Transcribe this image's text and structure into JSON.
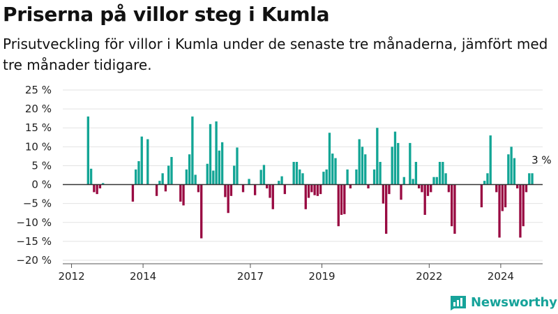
{
  "title": "Priserna på villor steg i Kumla",
  "subtitle": "Prisutveckling för villor i Kumla under de senaste tre månaderna, jämfört med tre månader tidigare.",
  "brand": "Newsworthy",
  "colors": {
    "positive": "#12a595",
    "negative": "#990a42",
    "grid": "#e2e2e2",
    "zero": "#333333",
    "brand": "#17a39a"
  },
  "chart_data": {
    "type": "bar",
    "ylim": [
      -20,
      25
    ],
    "yticks": [
      25,
      20,
      15,
      10,
      5,
      0,
      -5,
      -10,
      -15,
      -20
    ],
    "ytick_labels": [
      "25 %",
      "20 %",
      "15 %",
      "10 %",
      "5 %",
      "0 %",
      "−5 %",
      "−10 %",
      "−15 %",
      "−20 %"
    ],
    "xlim": [
      "2011-11",
      "2025-04"
    ],
    "xtick_labels": [
      "2012",
      "2014",
      "2017",
      "2019",
      "2022",
      "2024"
    ],
    "xtick_dates": [
      "2012-01",
      "2014-01",
      "2017-01",
      "2019-01",
      "2022-01",
      "2024-01"
    ],
    "annotation": {
      "text": "3 %",
      "date": "2024-10"
    },
    "series": [
      {
        "values": [
          [
            "2012-07",
            18
          ],
          [
            "2012-08",
            4.2
          ],
          [
            "2012-09",
            -2
          ],
          [
            "2012-10",
            -2.5
          ],
          [
            "2012-11",
            -1
          ],
          [
            "2012-12",
            0.4
          ],
          [
            "2013-10",
            -4.5
          ],
          [
            "2013-11",
            4
          ],
          [
            "2013-12",
            6.2
          ],
          [
            "2014-01",
            12.7
          ],
          [
            "2014-03",
            12
          ],
          [
            "2014-06",
            -3
          ],
          [
            "2014-07",
            1
          ],
          [
            "2014-08",
            3
          ],
          [
            "2014-09",
            -1.8
          ],
          [
            "2014-10",
            5
          ],
          [
            "2014-11",
            7.3
          ],
          [
            "2015-02",
            -4.5
          ],
          [
            "2015-03",
            -5.5
          ],
          [
            "2015-04",
            4
          ],
          [
            "2015-05",
            8
          ],
          [
            "2015-06",
            18
          ],
          [
            "2015-07",
            2.6
          ],
          [
            "2015-08",
            -2
          ],
          [
            "2015-09",
            -14.2
          ],
          [
            "2015-11",
            5.5
          ],
          [
            "2015-12",
            16
          ],
          [
            "2016-01",
            3.7
          ],
          [
            "2016-02",
            16.7
          ],
          [
            "2016-03",
            9
          ],
          [
            "2016-04",
            11.2
          ],
          [
            "2016-05",
            -3.3
          ],
          [
            "2016-06",
            -7.5
          ],
          [
            "2016-07",
            -3
          ],
          [
            "2016-08",
            5
          ],
          [
            "2016-09",
            9.8
          ],
          [
            "2016-11",
            -2
          ],
          [
            "2017-01",
            1.5
          ],
          [
            "2017-03",
            -2.8
          ],
          [
            "2017-05",
            3.9
          ],
          [
            "2017-06",
            5.2
          ],
          [
            "2017-07",
            -1
          ],
          [
            "2017-08",
            -3.5
          ],
          [
            "2017-09",
            -6.5
          ],
          [
            "2017-11",
            1
          ],
          [
            "2017-12",
            2.2
          ],
          [
            "2018-01",
            -2.5
          ],
          [
            "2018-04",
            6
          ],
          [
            "2018-05",
            6
          ],
          [
            "2018-06",
            4
          ],
          [
            "2018-07",
            3
          ],
          [
            "2018-08",
            -6.5
          ],
          [
            "2018-09",
            -3.5
          ],
          [
            "2018-10",
            -2
          ],
          [
            "2018-11",
            -2.8
          ],
          [
            "2018-12",
            -3
          ],
          [
            "2019-01",
            -2.5
          ],
          [
            "2019-02",
            3.4
          ],
          [
            "2019-03",
            4
          ],
          [
            "2019-04",
            13.7
          ],
          [
            "2019-05",
            8.2
          ],
          [
            "2019-06",
            7
          ],
          [
            "2019-07",
            -11
          ],
          [
            "2019-08",
            -8
          ],
          [
            "2019-09",
            -7.8
          ],
          [
            "2019-10",
            4
          ],
          [
            "2019-11",
            -1
          ],
          [
            "2020-01",
            4
          ],
          [
            "2020-02",
            12
          ],
          [
            "2020-03",
            10
          ],
          [
            "2020-04",
            8
          ],
          [
            "2020-05",
            -1
          ],
          [
            "2020-07",
            4
          ],
          [
            "2020-08",
            15
          ],
          [
            "2020-09",
            6
          ],
          [
            "2020-10",
            -5
          ],
          [
            "2020-11",
            -13
          ],
          [
            "2020-12",
            -2.5
          ],
          [
            "2021-01",
            10
          ],
          [
            "2021-02",
            14
          ],
          [
            "2021-03",
            11
          ],
          [
            "2021-04",
            -4
          ],
          [
            "2021-05",
            2
          ],
          [
            "2021-07",
            11
          ],
          [
            "2021-08",
            1.5
          ],
          [
            "2021-09",
            6
          ],
          [
            "2021-10",
            -1
          ],
          [
            "2021-11",
            -2
          ],
          [
            "2021-12",
            -8
          ],
          [
            "2022-01",
            -3
          ],
          [
            "2022-02",
            -2
          ],
          [
            "2022-03",
            2
          ],
          [
            "2022-04",
            2
          ],
          [
            "2022-05",
            6
          ],
          [
            "2022-06",
            6
          ],
          [
            "2022-07",
            3
          ],
          [
            "2022-08",
            -2
          ],
          [
            "2022-09",
            -11
          ],
          [
            "2022-10",
            -13
          ],
          [
            "2023-07",
            -6
          ],
          [
            "2023-08",
            1
          ],
          [
            "2023-09",
            3
          ],
          [
            "2023-10",
            13
          ],
          [
            "2023-12",
            -2
          ],
          [
            "2024-01",
            -14
          ],
          [
            "2024-02",
            -7
          ],
          [
            "2024-03",
            -6
          ],
          [
            "2024-04",
            8
          ],
          [
            "2024-05",
            10
          ],
          [
            "2024-06",
            7
          ],
          [
            "2024-07",
            -1
          ],
          [
            "2024-08",
            -14
          ],
          [
            "2024-09",
            -11
          ],
          [
            "2024-10",
            -2
          ],
          [
            "2024-11",
            3
          ],
          [
            "2024-12",
            3
          ]
        ]
      }
    ]
  }
}
